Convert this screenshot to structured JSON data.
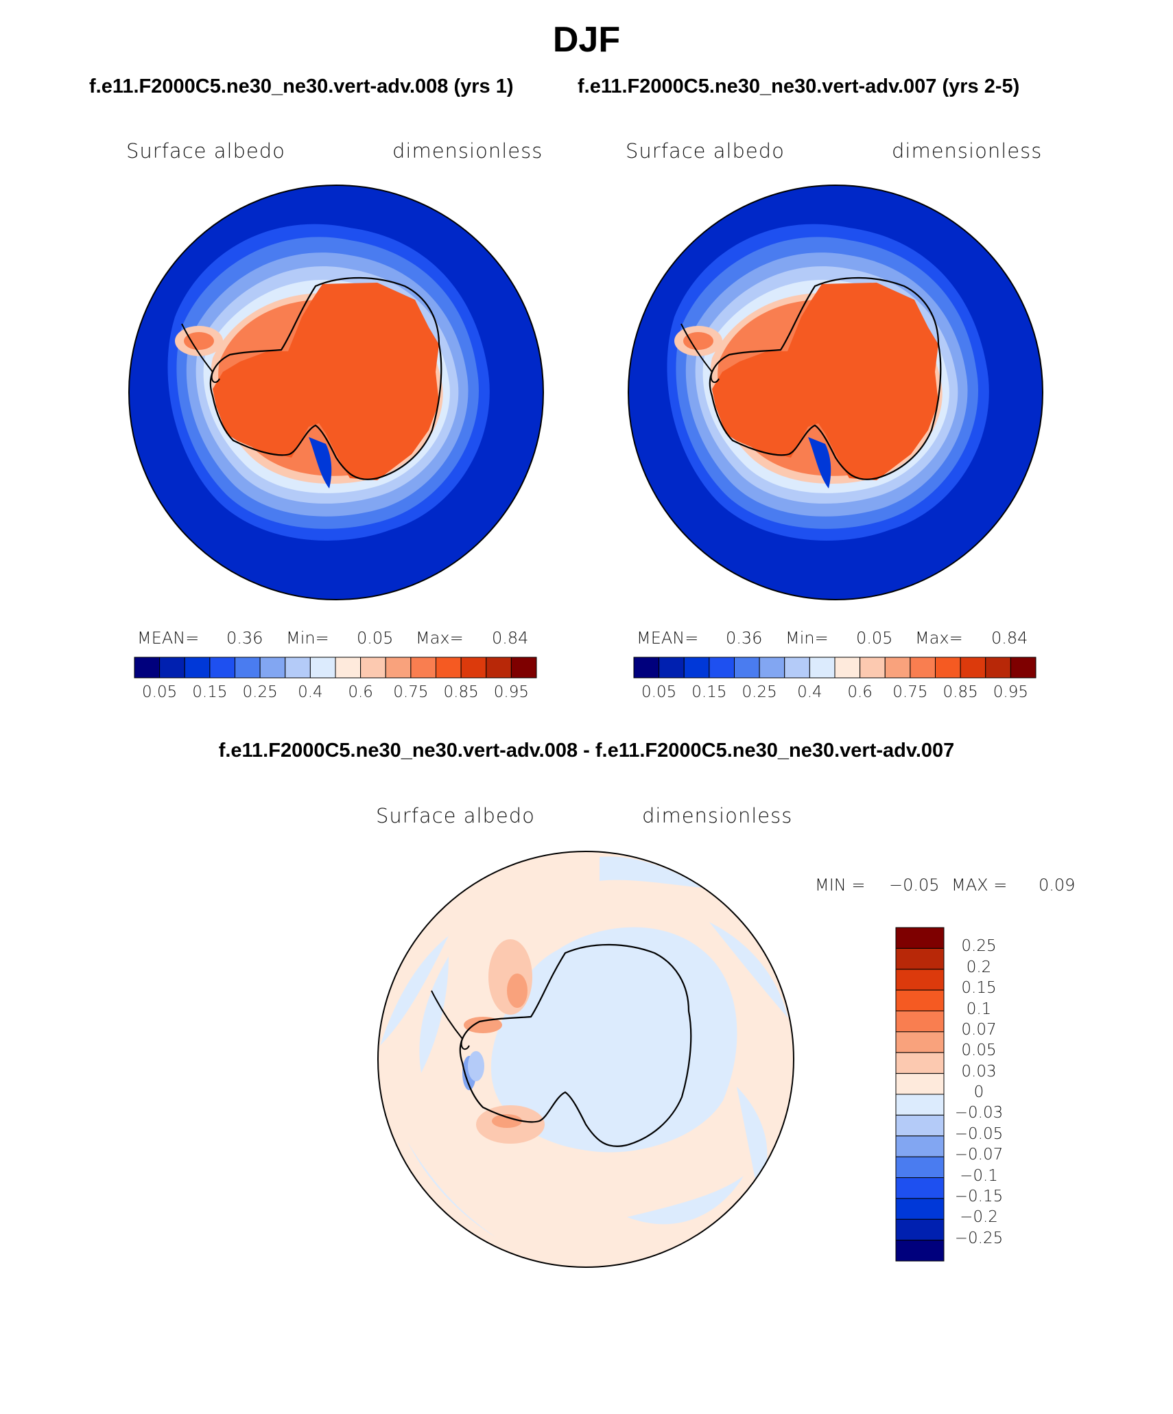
{
  "figure": {
    "season": "DJF",
    "case_left": "f.e11.F2000C5.ne30_ne30.vert-adv.008 (yrs 1)",
    "case_right": "f.e11.F2000C5.ne30_ne30.vert-adv.007 (yrs 2-5)",
    "diff_title": "f.e11.F2000C5.ne30_ne30.vert-adv.008 - f.e11.F2000C5.ne30_ne30.vert-adv.007"
  },
  "panels": [
    {
      "variable": "Surface albedo",
      "units": "dimensionless",
      "stats": {
        "mean_label": "MEAN=",
        "mean": "0.36",
        "min_label": "Min=",
        "min": "0.05",
        "max_label": "Max=",
        "max": "0.84"
      }
    },
    {
      "variable": "Surface albedo",
      "units": "dimensionless",
      "stats": {
        "mean_label": "MEAN=",
        "mean": "0.36",
        "min_label": "Min=",
        "min": "0.05",
        "max_label": "Max=",
        "max": "0.84"
      }
    }
  ],
  "diff_panel": {
    "variable": "Surface albedo",
    "units": "dimensionless",
    "min_label": "MIN =",
    "min": "−0.05",
    "max_label": "MAX =",
    "max": "0.09"
  },
  "colorbar": {
    "colors": [
      "#00007d",
      "#0020b0",
      "#0038d8",
      "#1e50f0",
      "#4a7cf0",
      "#82a6f2",
      "#b4cbf8",
      "#dcebfd",
      "#feeadc",
      "#fcc9b0",
      "#f9a27c",
      "#f97e50",
      "#f55a22",
      "#dc3a0c",
      "#b82808",
      "#7e0000"
    ],
    "labels": [
      "0.05",
      "0.15",
      "0.25",
      "0.4",
      "0.6",
      "0.75",
      "0.85",
      "0.95"
    ]
  },
  "diff_colorbar": {
    "colors": [
      "#7e0000",
      "#b82808",
      "#dc3a0c",
      "#f55a22",
      "#f97e50",
      "#f9a27c",
      "#fcc9b0",
      "#feeadc",
      "#dcebfd",
      "#b4cbf8",
      "#82a6f2",
      "#4a7cf0",
      "#1e50f0",
      "#0038d8",
      "#0020b0",
      "#00007d"
    ],
    "labels": [
      "0.25",
      "0.2",
      "0.15",
      "0.1",
      "0.07",
      "0.05",
      "0.03",
      "0",
      "−0.03",
      "−0.05",
      "−0.07",
      "−0.1",
      "−0.15",
      "−0.2",
      "−0.25"
    ]
  }
}
